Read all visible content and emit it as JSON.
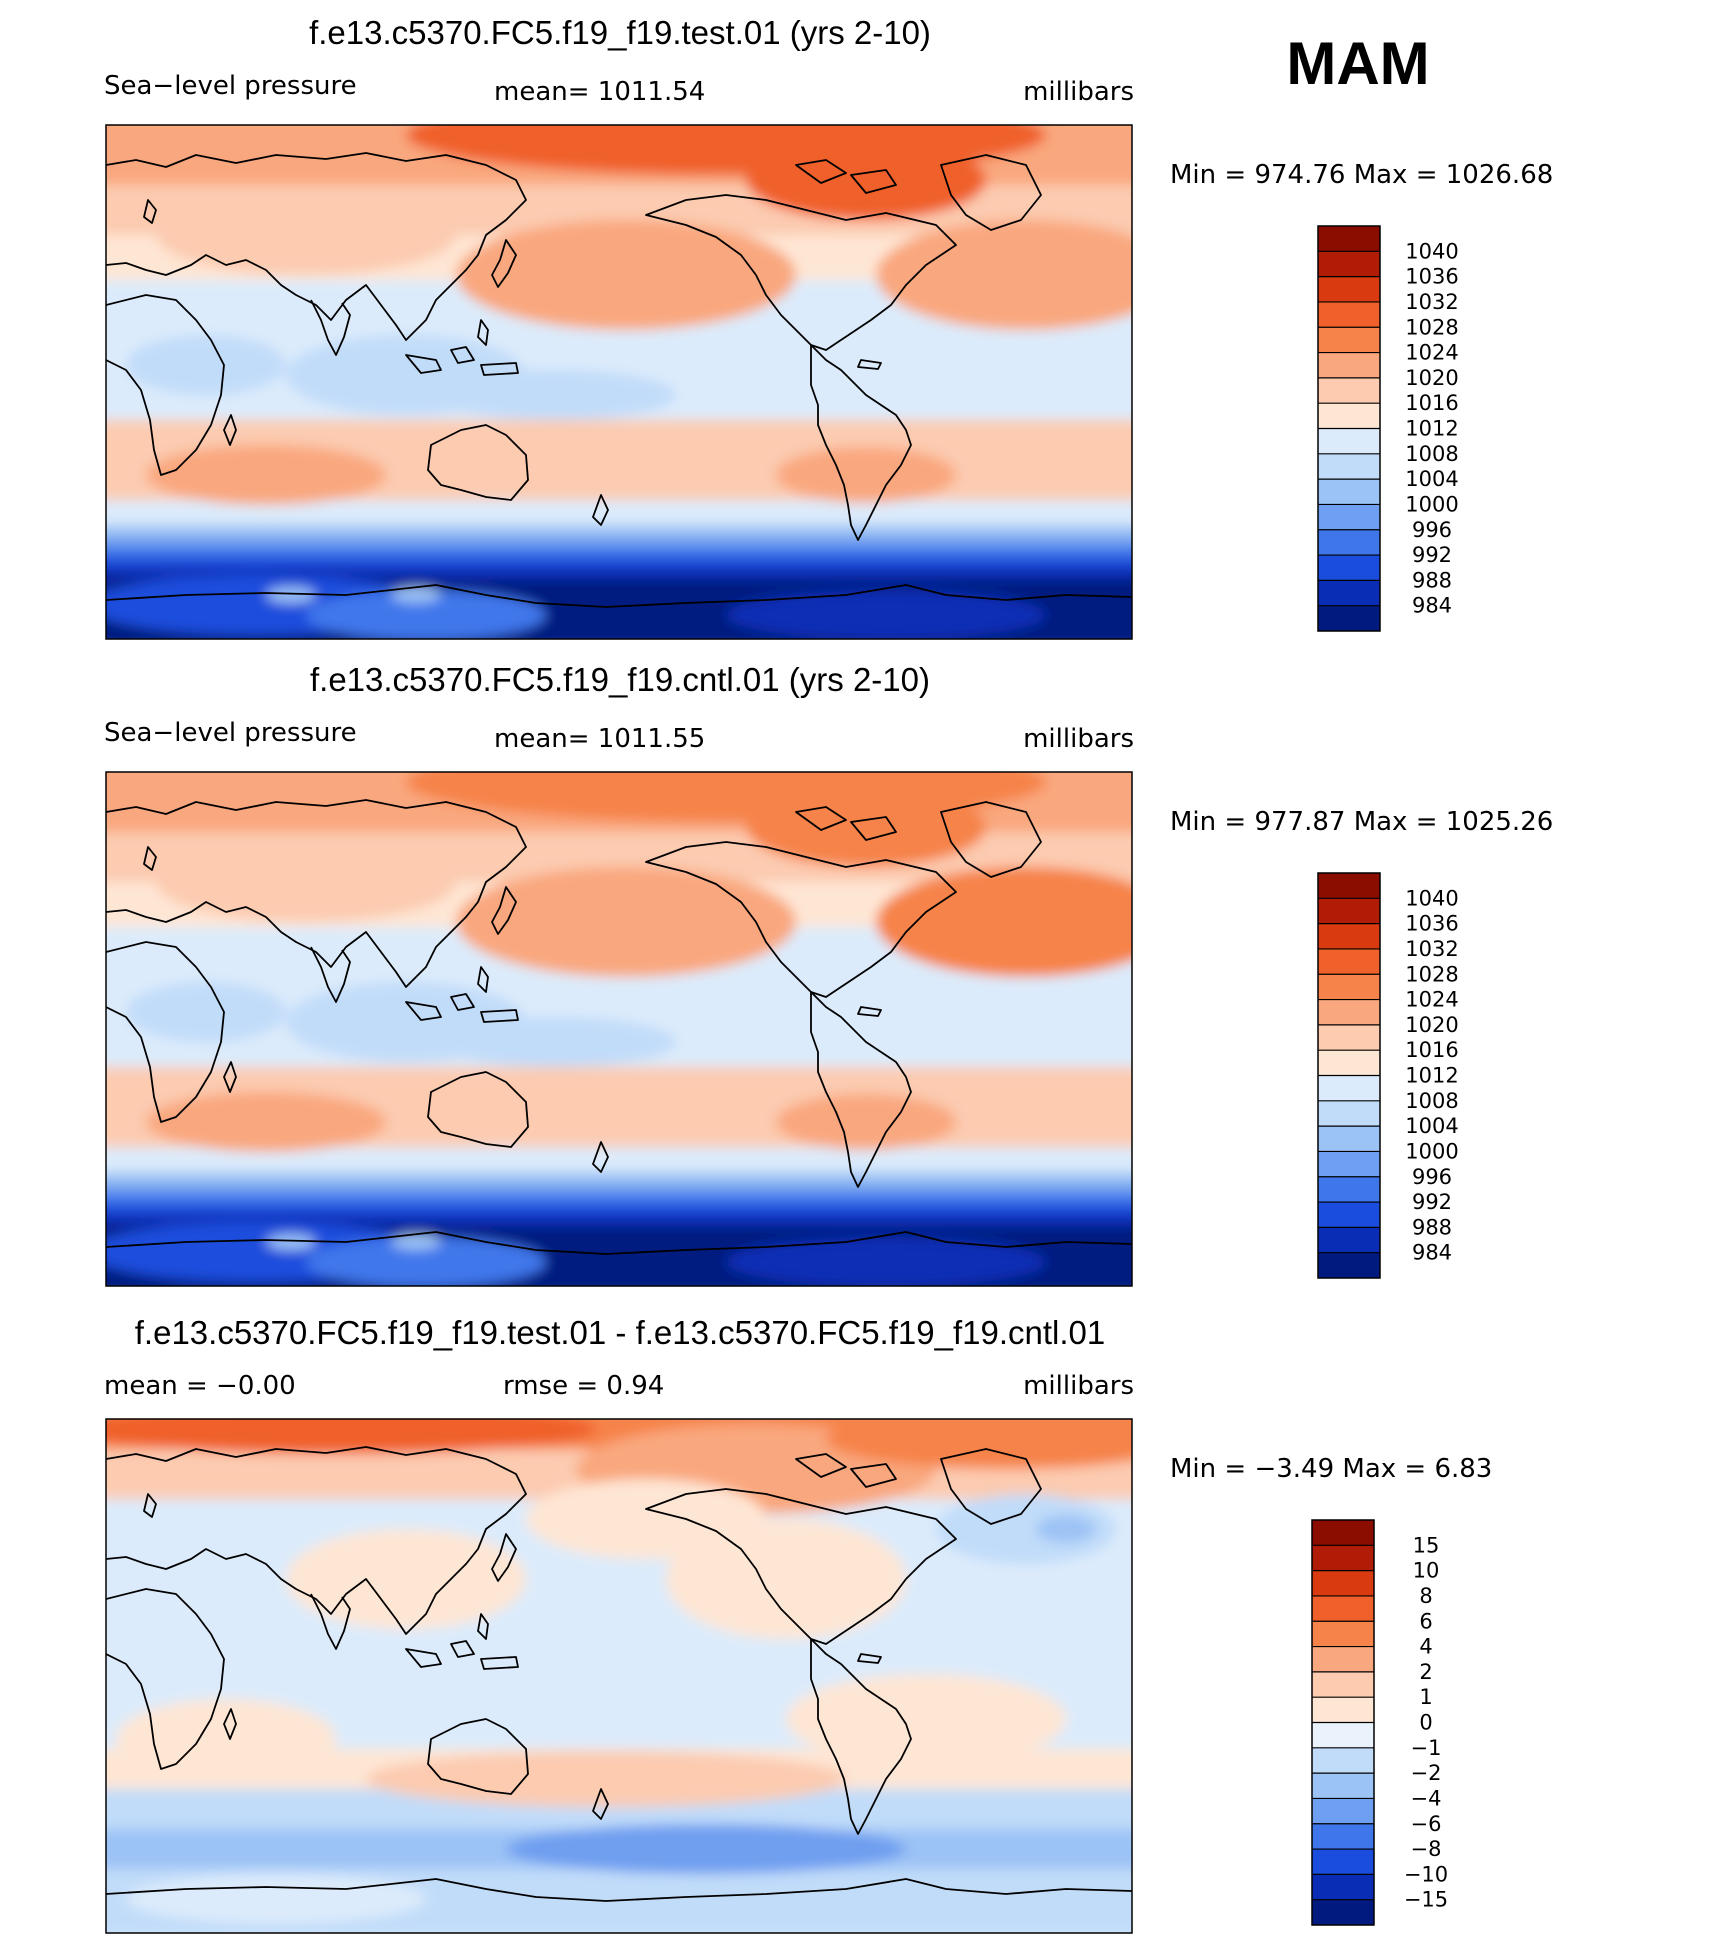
{
  "season_label": "MAM",
  "chart_data": [
    {
      "type": "heatmap",
      "title": "f.e13.c5370.FC5.f19_f19.test.01 (yrs 2-10)",
      "variable": "Sea−level pressure",
      "stat_text": "mean=  1011.54",
      "units": "millibars",
      "range_text": "Min  =  974.76  Max  =  1026.68",
      "min": 974.76,
      "max": 1026.68,
      "mean": 1011.54,
      "colorbar": {
        "labels": [
          "1040",
          "1036",
          "1032",
          "1028",
          "1024",
          "1020",
          "1016",
          "1012",
          "1008",
          "1004",
          "1000",
          "996",
          "992",
          "988",
          "984"
        ],
        "colors": [
          "#8B0D00",
          "#B01C05",
          "#D93A10",
          "#F0602A",
          "#F6834A",
          "#F9A77E",
          "#FCCBB0",
          "#FEE6D4",
          "#DCEBFB",
          "#C1DCF9",
          "#9CC3F5",
          "#6F9FF0",
          "#3F77EB",
          "#1A4DDD",
          "#0A2DB5",
          "#011A80"
        ]
      },
      "map_style": "total"
    },
    {
      "type": "heatmap",
      "title": "f.e13.c5370.FC5.f19_f19.cntl.01 (yrs 2-10)",
      "variable": "Sea−level pressure",
      "stat_text": "mean=  1011.55",
      "units": "millibars",
      "range_text": "Min  =  977.87  Max  =  1025.26",
      "min": 977.87,
      "max": 1025.26,
      "mean": 1011.55,
      "colorbar": {
        "labels": [
          "1040",
          "1036",
          "1032",
          "1028",
          "1024",
          "1020",
          "1016",
          "1012",
          "1008",
          "1004",
          "1000",
          "996",
          "992",
          "988",
          "984"
        ],
        "colors": [
          "#8B0D00",
          "#B01C05",
          "#D93A10",
          "#F0602A",
          "#F6834A",
          "#F9A77E",
          "#FCCBB0",
          "#FEE6D4",
          "#DCEBFB",
          "#C1DCF9",
          "#9CC3F5",
          "#6F9FF0",
          "#3F77EB",
          "#1A4DDD",
          "#0A2DB5",
          "#011A80"
        ]
      },
      "map_style": "total"
    },
    {
      "type": "heatmap",
      "title": "f.e13.c5370.FC5.f19_f19.test.01 - f.e13.c5370.FC5.f19_f19.cntl.01",
      "variable": "mean  =    −0.00",
      "stat_text": "rmse  =     0.94",
      "units": "millibars",
      "range_text": "Min  =   −3.49  Max  =      6.83",
      "min": -3.49,
      "max": 6.83,
      "mean": -0.0,
      "rmse": 0.94,
      "colorbar": {
        "labels": [
          "15",
          "10",
          "8",
          "6",
          "4",
          "2",
          "1",
          "0",
          "−1",
          "−2",
          "−4",
          "−6",
          "−8",
          "−10",
          "−15"
        ],
        "colors": [
          "#8B0D00",
          "#B01C05",
          "#D93A10",
          "#F0602A",
          "#F6834A",
          "#F9A77E",
          "#FCCBB0",
          "#FEE6D4",
          "#EAF2FC",
          "#C1DCF9",
          "#9CC3F5",
          "#6F9FF0",
          "#3F77EB",
          "#1A4DDD",
          "#0A2DB5",
          "#011A80"
        ]
      },
      "map_style": "diff"
    }
  ]
}
